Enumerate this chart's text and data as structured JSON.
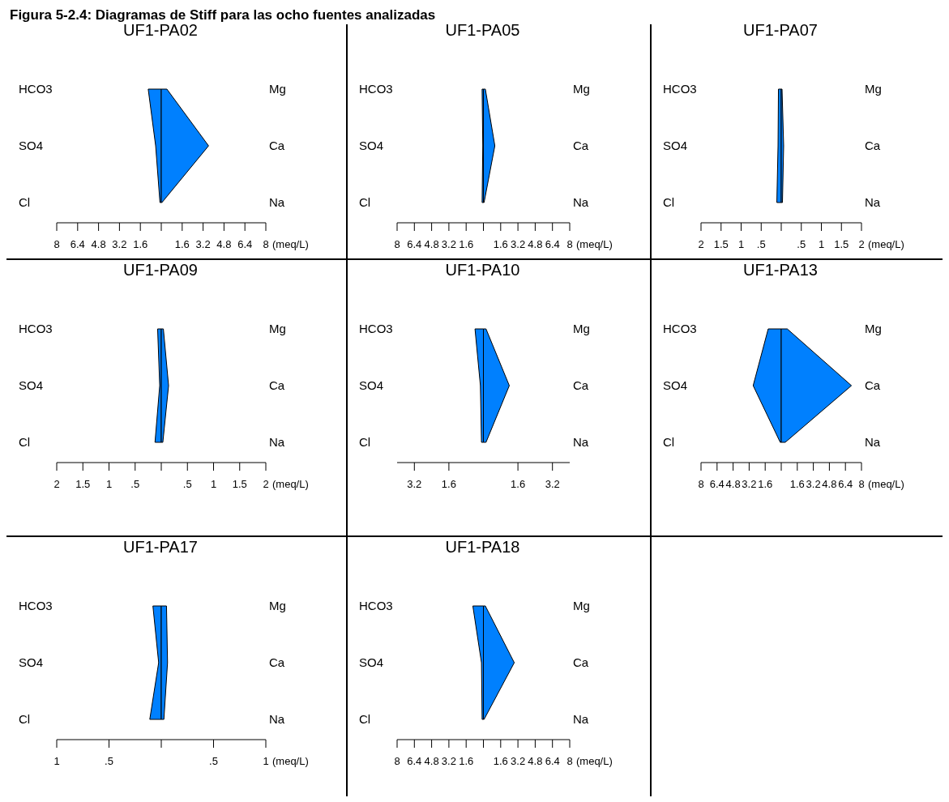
{
  "chart_data": [
    {
      "type": "other",
      "title": "Figura 5-2.4: Diagramas de Stiff para las ocho fuentes analizadas"
    },
    {
      "type": "area",
      "orientation": "horizontal",
      "title": "UF1-PA02",
      "categories": [
        "HCO3",
        "SO4",
        "Cl"
      ],
      "y2_categories": [
        "Mg",
        "Ca",
        "Na"
      ],
      "xlim": [
        -8,
        8
      ],
      "xlabel": "(meq/L)",
      "xticks": [
        {
          "value": -8,
          "label": "8"
        },
        {
          "value": -6.4,
          "label": "6.4"
        },
        {
          "value": -4.8,
          "label": "4.8"
        },
        {
          "value": -3.2,
          "label": "3.2"
        },
        {
          "value": -1.6,
          "label": "1.6"
        },
        {
          "value": 0,
          "label": null
        },
        1.6,
        3.2,
        4.8,
        6.4,
        8
      ],
      "series": [
        {
          "color": "#0080ff",
          "values": [
            -1.0,
            -0.43,
            -0.1
          ]
        },
        {
          "color": "#0080fe",
          "values": [
            0.43,
            3.62,
            0.05
          ]
        }
      ]
    },
    {
      "type": "area",
      "orientation": "horizontal",
      "title": "UF1-PA05",
      "categories": [
        "HCO3",
        "SO4",
        "Cl"
      ],
      "y2_categories": [
        "Mg",
        "Ca",
        "Na"
      ],
      "xlim": [
        -8,
        8
      ],
      "xlabel": "(meq/L)",
      "xticks": [
        {
          "value": -8,
          "label": "8"
        },
        {
          "value": -6.4,
          "label": "6.4"
        },
        {
          "value": -4.8,
          "label": "4.8"
        },
        {
          "value": -3.2,
          "label": "3.2"
        },
        {
          "value": -1.6,
          "label": "1.6"
        },
        {
          "value": 0,
          "label": null
        },
        1.6,
        3.2,
        4.8,
        6.4,
        8
      ],
      "series": [
        {
          "color": "#0080ff",
          "values": [
            -0.12,
            -0.06,
            -0.12
          ]
        },
        {
          "color": "#0080fe",
          "values": [
            0.18,
            1.06,
            0.06
          ]
        }
      ]
    },
    {
      "type": "area",
      "orientation": "horizontal",
      "title": "UF1-PA07",
      "categories": [
        "HCO3",
        "SO4",
        "Cl"
      ],
      "y2_categories": [
        "Mg",
        "Ca",
        "Na"
      ],
      "xlim": [
        -2,
        2
      ],
      "xlabel": "(meq/L)",
      "xticks": [
        {
          "value": -2,
          "label": "2"
        },
        {
          "value": -1.5,
          "label": "1.5"
        },
        {
          "value": -1,
          "label": "1"
        },
        {
          "value": -0.5,
          "label": ".5"
        },
        {
          "value": 0,
          "label": null
        },
        {
          "value": 0.5,
          "label": ".5"
        },
        1,
        1.5,
        2
      ],
      "series": [
        {
          "color": "#0080ff",
          "values": [
            -0.07,
            -0.08,
            -0.11
          ]
        },
        {
          "color": "#0080fe",
          "values": [
            0.02,
            0.06,
            0.03
          ]
        }
      ]
    },
    {
      "type": "area",
      "orientation": "horizontal",
      "title": "UF1-PA09",
      "categories": [
        "HCO3",
        "SO4",
        "Cl"
      ],
      "y2_categories": [
        "Mg",
        "Ca",
        "Na"
      ],
      "xlim": [
        -2,
        2
      ],
      "xlabel": "(meq/L)",
      "xticks": [
        {
          "value": -2,
          "label": "2"
        },
        {
          "value": -1.5,
          "label": "1.5"
        },
        {
          "value": -1,
          "label": "1"
        },
        {
          "value": -0.5,
          "label": ".5"
        },
        {
          "value": 0,
          "label": null
        },
        {
          "value": 0.5,
          "label": ".5"
        },
        1,
        1.5,
        2
      ],
      "series": [
        {
          "color": "#0080ff",
          "values": [
            -0.07,
            -0.03,
            -0.12
          ]
        },
        {
          "color": "#0080fe",
          "values": [
            0.04,
            0.14,
            0.03
          ]
        }
      ]
    },
    {
      "type": "area",
      "orientation": "horizontal",
      "title": "UF1-PA10",
      "categories": [
        "HCO3",
        "SO4",
        "Cl"
      ],
      "y2_categories": [
        "Mg",
        "Ca",
        "Na"
      ],
      "xlim": [
        -4,
        4
      ],
      "xticks": [
        {
          "value": -3.2,
          "label": "3.2"
        },
        {
          "value": -1.6,
          "label": "1.6"
        },
        1.6,
        3.2
      ],
      "series": [
        {
          "color": "#0080ff",
          "values": [
            -0.39,
            -0.14,
            -0.09
          ]
        },
        {
          "color": "#0080fe",
          "values": [
            0.12,
            1.2,
            0.12
          ]
        }
      ]
    },
    {
      "type": "area",
      "orientation": "horizontal",
      "title": "UF1-PA13",
      "categories": [
        "HCO3",
        "SO4",
        "Cl"
      ],
      "y2_categories": [
        "Mg",
        "Ca",
        "Na"
      ],
      "xlim": [
        -8,
        8
      ],
      "xlabel": "(meq/L)",
      "xticks": [
        {
          "value": -8,
          "label": "8"
        },
        {
          "value": -6.4,
          "label": "6.4"
        },
        {
          "value": -4.8,
          "label": "4.8"
        },
        {
          "value": -3.2,
          "label": "3.2"
        },
        {
          "value": -1.6,
          "label": "1.6"
        },
        {
          "value": 0,
          "label": null
        },
        1.6,
        3.2,
        4.8,
        6.4,
        8
      ],
      "series": [
        {
          "color": "#0080ff",
          "values": [
            -1.3,
            -2.8,
            -0.1
          ]
        },
        {
          "color": "#0080fe",
          "values": [
            0.6,
            7.0,
            0.4
          ]
        }
      ]
    },
    {
      "type": "area",
      "orientation": "horizontal",
      "title": "UF1-PA17",
      "categories": [
        "HCO3",
        "SO4",
        "Cl"
      ],
      "y2_categories": [
        "Mg",
        "Ca",
        "Na"
      ],
      "xlim": [
        -1,
        1
      ],
      "xlabel": "(meq/L)",
      "xticks": [
        {
          "value": -1,
          "label": "1"
        },
        {
          "value": -0.5,
          "label": ".5"
        },
        {
          "value": 0,
          "label": null
        },
        {
          "value": 0.5,
          "label": ".5"
        },
        1
      ],
      "series": [
        {
          "color": "#0080ff",
          "values": [
            -0.08,
            -0.025,
            -0.11
          ]
        },
        {
          "color": "#0080fe",
          "values": [
            0.05,
            0.06,
            0.025
          ]
        }
      ]
    },
    {
      "type": "area",
      "orientation": "horizontal",
      "title": "UF1-PA18",
      "categories": [
        "HCO3",
        "SO4",
        "Cl"
      ],
      "y2_categories": [
        "Mg",
        "Ca",
        "Na"
      ],
      "xlim": [
        -8,
        8
      ],
      "xlabel": "(meq/L)",
      "xticks": [
        {
          "value": -8,
          "label": "8"
        },
        {
          "value": -6.4,
          "label": "6.4"
        },
        {
          "value": -4.8,
          "label": "4.8"
        },
        {
          "value": -3.2,
          "label": "3.2"
        },
        {
          "value": -1.6,
          "label": "1.6"
        },
        {
          "value": 0,
          "label": null
        },
        1.6,
        3.2,
        4.8,
        6.4,
        8
      ],
      "series": [
        {
          "color": "#0080ff",
          "values": [
            -0.98,
            -0.18,
            -0.12
          ]
        },
        {
          "color": "#0080fe",
          "values": [
            0.18,
            2.86,
            0.06
          ]
        }
      ]
    }
  ]
}
